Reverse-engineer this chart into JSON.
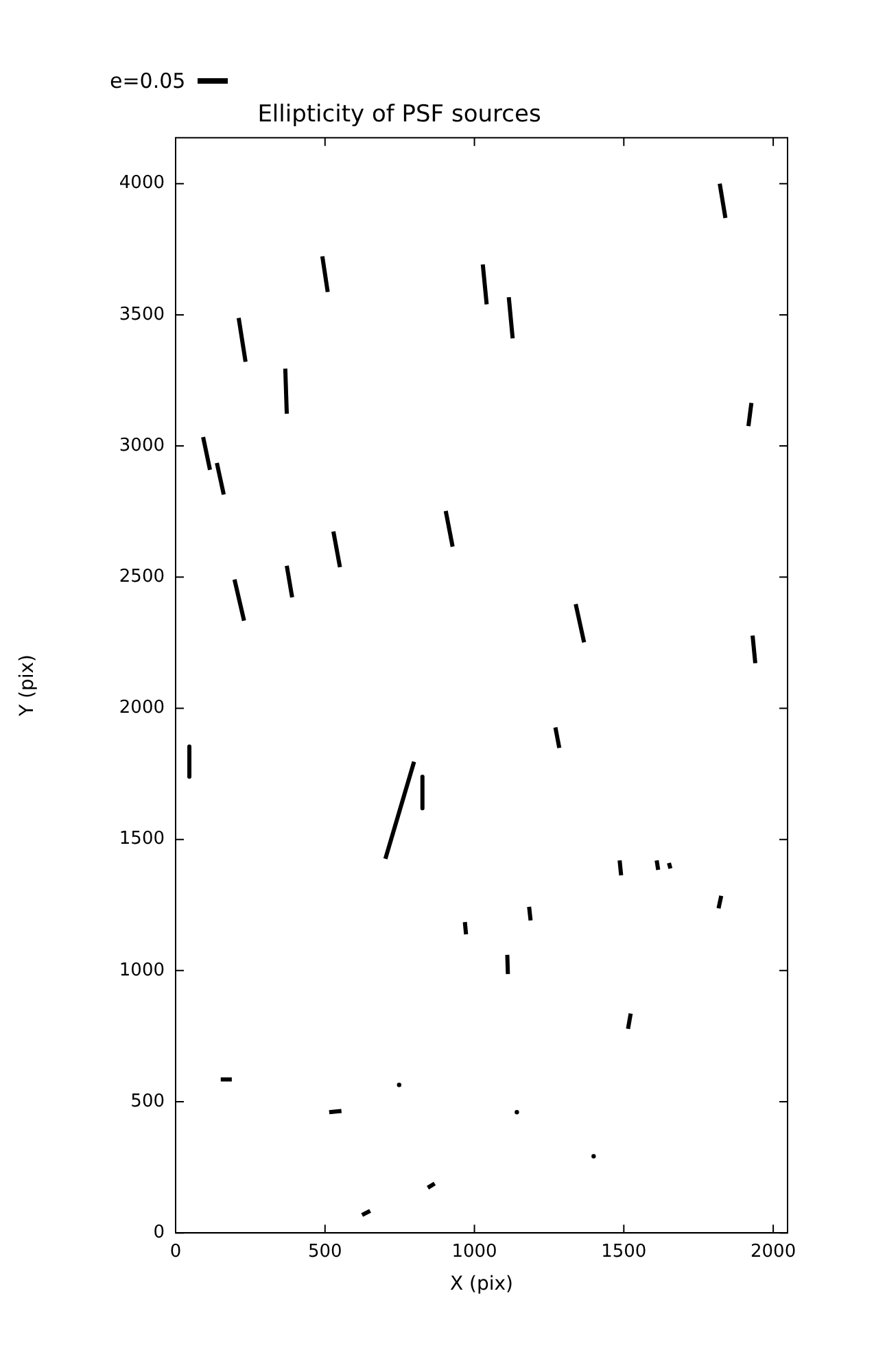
{
  "chart_data": {
    "type": "line",
    "title": "Ellipticity of PSF sources",
    "xlabel": "X (pix)",
    "ylabel": "Y (pix)",
    "annotations": [
      "e=0.05"
    ],
    "xlim": [
      0,
      2048
    ],
    "ylim": [
      0,
      4175
    ],
    "xticks": [
      0,
      500,
      1000,
      1500,
      2000
    ],
    "yticks": [
      0,
      500,
      1000,
      1500,
      2000,
      2500,
      3000,
      3500,
      4000
    ],
    "grid": false,
    "legend": false,
    "marker": "none",
    "line_style": "solid",
    "series": [
      {
        "x": [
          1821,
          1840
        ],
        "values": [
          4000,
          3869
        ],
        "color": "#000000"
      },
      {
        "x": [
          491,
          509
        ],
        "values": [
          3723,
          3587
        ],
        "color": "#000000"
      },
      {
        "x": [
          1028,
          1041
        ],
        "values": [
          3692,
          3540
        ],
        "color": "#000000"
      },
      {
        "x": [
          1115,
          1128
        ],
        "values": [
          3567,
          3410
        ],
        "color": "#000000"
      },
      {
        "x": [
          211,
          234
        ],
        "values": [
          3488,
          3321
        ],
        "color": "#000000"
      },
      {
        "x": [
          367,
          372
        ],
        "values": [
          3295,
          3123
        ],
        "color": "#000000"
      },
      {
        "x": [
          1927,
          1917
        ],
        "values": [
          3164,
          3076
        ],
        "color": "#000000"
      },
      {
        "x": [
          92,
          115
        ],
        "values": [
          3034,
          2909
        ],
        "color": "#000000"
      },
      {
        "x": [
          138,
          161
        ],
        "values": [
          2935,
          2815
        ],
        "color": "#000000"
      },
      {
        "x": [
          904,
          927
        ],
        "values": [
          2752,
          2616
        ],
        "color": "#000000"
      },
      {
        "x": [
          528,
          550
        ],
        "values": [
          2674,
          2538
        ],
        "color": "#000000"
      },
      {
        "x": [
          372,
          390
        ],
        "values": [
          2543,
          2423
        ],
        "color": "#000000"
      },
      {
        "x": [
          197,
          229
        ],
        "values": [
          2491,
          2334
        ],
        "color": "#000000"
      },
      {
        "x": [
          1339,
          1367
        ],
        "values": [
          2397,
          2251
        ],
        "color": "#000000"
      },
      {
        "x": [
          1931,
          1940
        ],
        "values": [
          2277,
          2172
        ],
        "color": "#000000"
      },
      {
        "x": [
          1271,
          1284
        ],
        "values": [
          1927,
          1849
        ],
        "color": "#000000"
      },
      {
        "x": [
          46,
          46
        ],
        "values": [
          1854,
          1739
        ],
        "color": "#000000"
      },
      {
        "x": [
          702,
          798
        ],
        "values": [
          1426,
          1796
        ],
        "color": "#000000"
      },
      {
        "x": [
          826,
          826
        ],
        "values": [
          1739,
          1619
        ],
        "color": "#000000"
      },
      {
        "x": [
          1486,
          1491
        ],
        "values": [
          1420,
          1363
        ],
        "color": "#000000"
      },
      {
        "x": [
          1610,
          1615
        ],
        "values": [
          1420,
          1384
        ],
        "color": "#000000"
      },
      {
        "x": [
          1651,
          1656
        ],
        "values": [
          1410,
          1389
        ],
        "color": "#000000"
      },
      {
        "x": [
          1183,
          1188
        ],
        "values": [
          1243,
          1191
        ],
        "color": "#000000"
      },
      {
        "x": [
          968,
          972
        ],
        "values": [
          1185,
          1138
        ],
        "color": "#000000"
      },
      {
        "x": [
          1110,
          1112
        ],
        "values": [
          1060,
          987
        ],
        "color": "#000000"
      },
      {
        "x": [
          1826,
          1817
        ],
        "values": [
          1285,
          1237
        ],
        "color": "#000000"
      },
      {
        "x": [
          1523,
          1514
        ],
        "values": [
          836,
          778
        ],
        "color": "#000000"
      },
      {
        "x": [
          151,
          188
        ],
        "values": [
          585,
          585
        ],
        "color": "#000000"
      },
      {
        "x": [
          514,
          555
        ],
        "values": [
          460,
          465
        ],
        "color": "#000000"
      },
      {
        "type": "scatter",
        "marker": "circle",
        "x": [
          748
        ],
        "values": [
          564
        ],
        "color": "#000000"
      },
      {
        "type": "scatter",
        "marker": "circle",
        "x": [
          1142
        ],
        "values": [
          460
        ],
        "color": "#000000"
      },
      {
        "type": "scatter",
        "marker": "circle",
        "x": [
          1399
        ],
        "values": [
          292
        ],
        "color": "#000000"
      },
      {
        "x": [
          844,
          867
        ],
        "values": [
          172,
          188
        ],
        "color": "#000000"
      },
      {
        "x": [
          624,
          651
        ],
        "values": [
          68,
          84
        ],
        "color": "#000000"
      }
    ]
  }
}
